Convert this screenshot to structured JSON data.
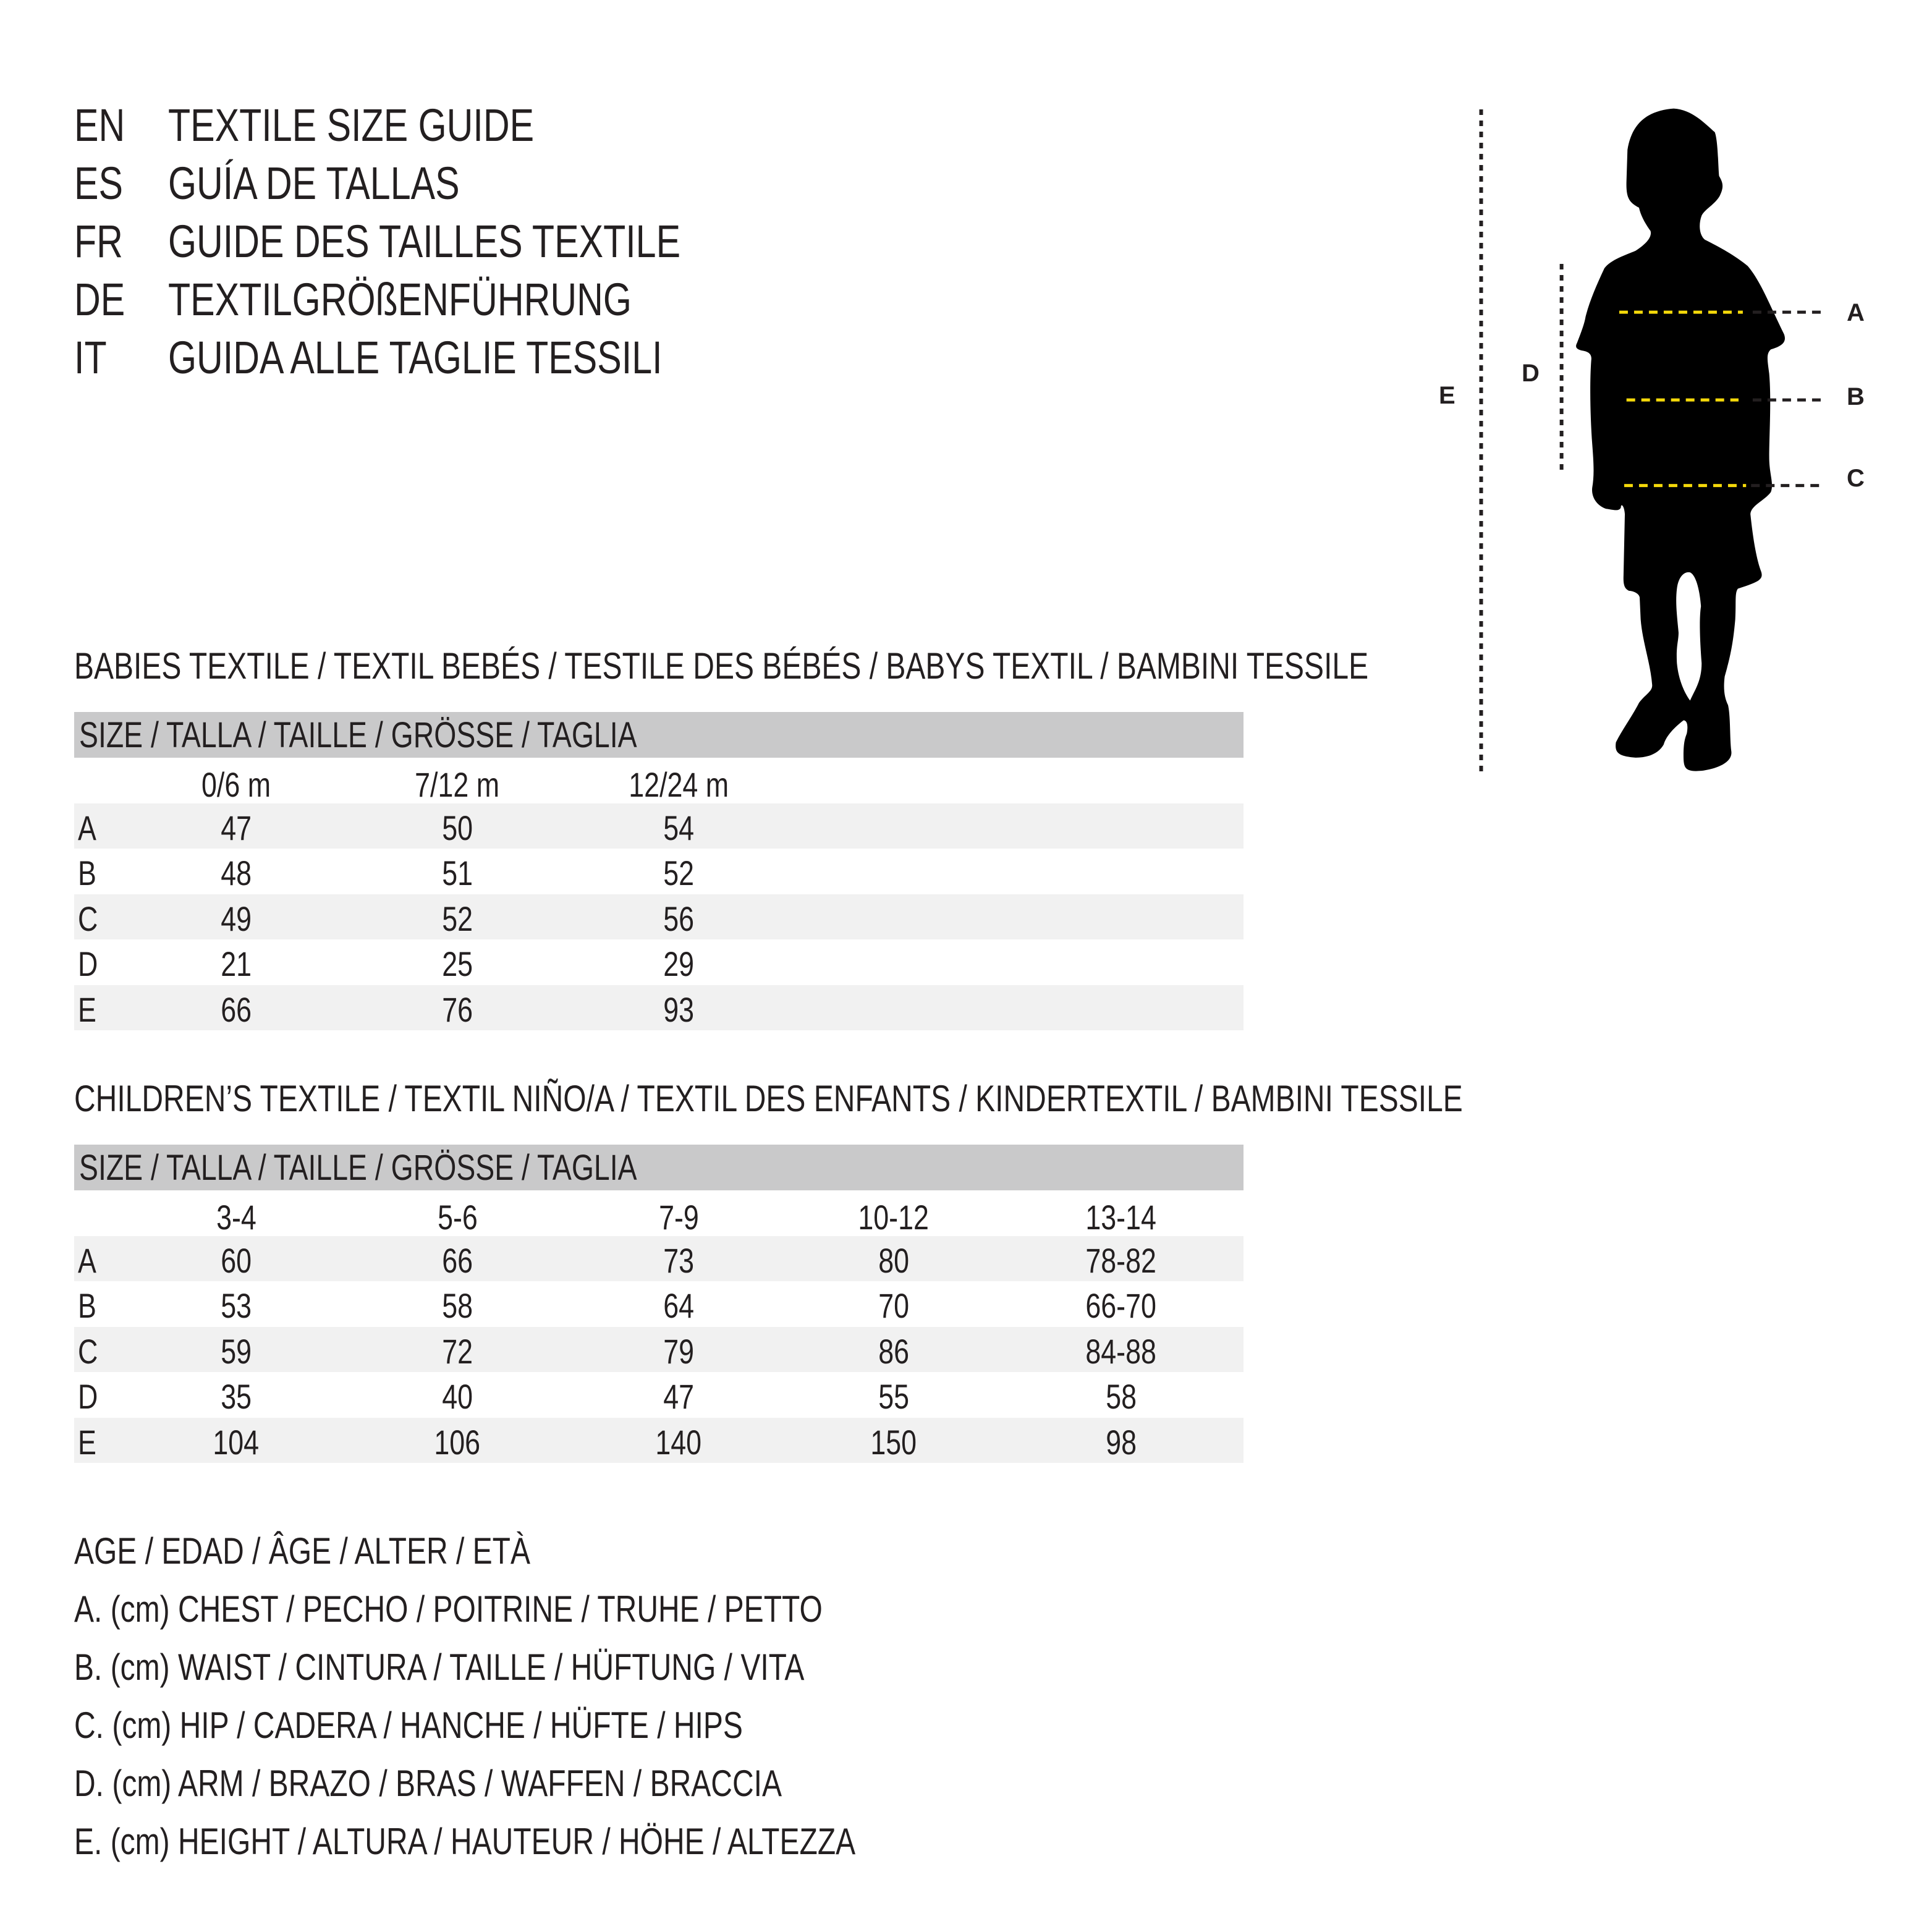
{
  "titles": [
    {
      "lang": "EN",
      "text": "TEXTILE SIZE GUIDE"
    },
    {
      "lang": "ES",
      "text": "GUÍA DE TALLAS"
    },
    {
      "lang": "FR",
      "text": "GUIDE DES TAILLES TEXTILE"
    },
    {
      "lang": "DE",
      "text": "TEXTILGRÖßENFÜHRUNG"
    },
    {
      "lang": "IT",
      "text": "GUIDA ALLE TAGLIE TESSILI"
    }
  ],
  "babies": {
    "heading": "BABIES TEXTILE / TEXTIL BEBÉS / TESTILE DES BÉBÉS / BABYS TEXTIL / BAMBINI TESSILE",
    "size_header": "SIZE / TALLA / TAILLE / GRÖSSE / TAGLIA",
    "columns": [
      "0/6 m",
      "7/12 m",
      "12/24 m"
    ],
    "rows": [
      {
        "label": "A",
        "values": [
          "47",
          "50",
          "54"
        ]
      },
      {
        "label": "B",
        "values": [
          "48",
          "51",
          "52"
        ]
      },
      {
        "label": "C",
        "values": [
          "49",
          "52",
          "56"
        ]
      },
      {
        "label": "D",
        "values": [
          "21",
          "25",
          "29"
        ]
      },
      {
        "label": "E",
        "values": [
          "66",
          "76",
          "93"
        ]
      }
    ]
  },
  "children": {
    "heading": "CHILDREN’S TEXTILE / TEXTIL NIÑO/A / TEXTIL DES ENFANTS / KINDERTEXTIL / BAMBINI TESSILE",
    "size_header": "SIZE / TALLA / TAILLE / GRÖSSE / TAGLIA",
    "columns": [
      "3-4",
      "5-6",
      "7-9",
      "10-12",
      "13-14"
    ],
    "rows": [
      {
        "label": "A",
        "values": [
          "60",
          "66",
          "73",
          "80",
          "78-82"
        ]
      },
      {
        "label": "B",
        "values": [
          "53",
          "58",
          "64",
          "70",
          "66-70"
        ]
      },
      {
        "label": "C",
        "values": [
          "59",
          "72",
          "79",
          "86",
          "84-88"
        ]
      },
      {
        "label": "D",
        "values": [
          "35",
          "40",
          "47",
          "55",
          "58"
        ]
      },
      {
        "label": "E",
        "values": [
          "104",
          "106",
          "140",
          "150",
          "98"
        ]
      }
    ]
  },
  "legend": [
    "AGE / EDAD / ÂGE / ALTER / ETÀ",
    "A. (cm) CHEST / PECHO / POITRINE / TRUHE / PETTO",
    "B. (cm) WAIST / CINTURA / TAILLE / HÜFTUNG / VITA",
    "C. (cm) HIP / CADERA / HANCHE / HÜFTE / HIPS",
    "D. (cm) ARM / BRAZO / BRAS / WAFFEN / BRACCIA",
    "E. (cm) HEIGHT / ALTURA / HAUTEUR / HÖHE / ALTEZZA"
  ],
  "figure": {
    "icon": "child-silhouette-icon",
    "labels": {
      "A": "A",
      "B": "B",
      "C": "C",
      "D": "D",
      "E": "E"
    },
    "colors": {
      "measure_line": "#f5d90a",
      "guide_line": "#231f20",
      "silhouette": "#000000"
    }
  }
}
